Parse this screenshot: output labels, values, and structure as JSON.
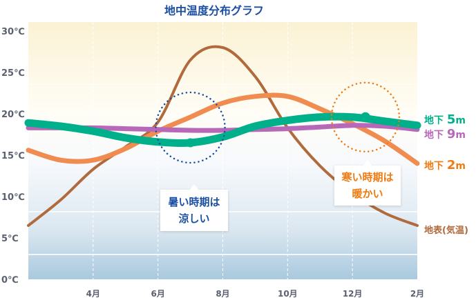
{
  "chart_data": {
    "type": "line",
    "title": "地中温度分布グラフ",
    "x": [
      2,
      3,
      4,
      5,
      6,
      7,
      8,
      9,
      10,
      11,
      12,
      13,
      14
    ],
    "x_ticks": [
      {
        "m": 4,
        "label": "4月"
      },
      {
        "m": 6,
        "label": "6月"
      },
      {
        "m": 8,
        "label": "8月"
      },
      {
        "m": 10,
        "label": "10月"
      },
      {
        "m": 12,
        "label": "12月"
      },
      {
        "m": 14,
        "label": "2月"
      }
    ],
    "y_ticks": [
      {
        "v": 30,
        "label": "30℃"
      },
      {
        "v": 25,
        "label": "25℃"
      },
      {
        "v": 20,
        "label": "20℃"
      },
      {
        "v": 15,
        "label": "15℃"
      },
      {
        "v": 10,
        "label": "10℃"
      },
      {
        "v": 5,
        "label": "5℃"
      },
      {
        "v": 0,
        "label": "0℃"
      }
    ],
    "ylim": [
      0,
      30
    ],
    "xlim": [
      2,
      14
    ],
    "grid": true,
    "series": [
      {
        "name": "地表(気温)",
        "color": "#b06a3b",
        "values": [
          6.5,
          9.6,
          13.3,
          16,
          19,
          26.5,
          28,
          24.5,
          18.3,
          13.7,
          10.4,
          8,
          6.5
        ]
      },
      {
        "name": "地下2m",
        "color": "#f08c50",
        "values": [
          15.6,
          14.4,
          14.4,
          15.8,
          17.9,
          19.6,
          21.3,
          22.1,
          22.1,
          20.6,
          18.8,
          16.7,
          14
        ]
      },
      {
        "name": "地下9m",
        "color": "#b868b8",
        "values": [
          18.3,
          18.3,
          18.3,
          18.2,
          18.1,
          18,
          18,
          18.1,
          18.2,
          18.4,
          18.6,
          18.5,
          18.1
        ]
      },
      {
        "name": "地下5m",
        "color": "#00b08a",
        "values": [
          18.9,
          18.5,
          17.9,
          17.1,
          16.6,
          16.5,
          17.2,
          18.5,
          19.2,
          19.6,
          19.6,
          19.1,
          18.6
        ]
      }
    ],
    "labels": {
      "s5": {
        "pre": "地下",
        "num": "5",
        "unit": "m"
      },
      "s9": {
        "pre": "地下",
        "num": "9",
        "unit": "m"
      },
      "s2": {
        "pre": "地下",
        "num": "2",
        "unit": "m"
      },
      "surface": "地表(気温)"
    },
    "annotations": [
      {
        "line1": "暑い時期は",
        "line2": "涼しい",
        "color": "#1a4ea0",
        "month": 7,
        "value": 16.5
      },
      {
        "line1": "寒い時期は",
        "line2": "暖かい",
        "color": "#f07a10",
        "month": 12.4,
        "value": 19.6
      }
    ]
  }
}
